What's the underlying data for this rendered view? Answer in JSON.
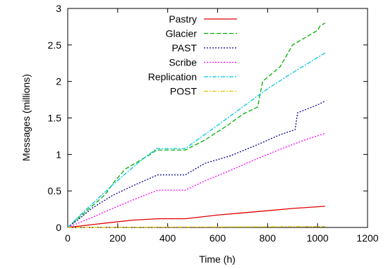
{
  "chart_data": {
    "type": "line",
    "xlabel": "Time (h)",
    "ylabel": "Messages (millions)",
    "xlim": [
      0,
      1200
    ],
    "ylim": [
      0,
      3
    ],
    "xticks": [
      0,
      200,
      400,
      600,
      800,
      1000,
      1200
    ],
    "yticks": [
      0,
      0.5,
      1,
      1.5,
      2,
      2.5,
      3
    ],
    "xtick_labels": [
      "0",
      "200",
      "400",
      "600",
      "800",
      "1000",
      "1200"
    ],
    "ytick_labels": [
      "0",
      "0.5",
      "1",
      "1.5",
      "2",
      "2.5",
      "3"
    ],
    "grid": false,
    "legend_position": "top-left",
    "series": [
      {
        "name": "Pastry",
        "color": "#e00000",
        "dash": "solid",
        "x": [
          0,
          50,
          100,
          180,
          260,
          360,
          470,
          600,
          700,
          800,
          900,
          1030
        ],
        "y": [
          0,
          0.02,
          0.04,
          0.07,
          0.1,
          0.12,
          0.12,
          0.17,
          0.2,
          0.23,
          0.26,
          0.29
        ]
      },
      {
        "name": "Glacier",
        "color": "#00b000",
        "dash": "dashed",
        "x": [
          0,
          50,
          100,
          150,
          185,
          230,
          280,
          330,
          355,
          470,
          550,
          640,
          700,
          760,
          780,
          850,
          900,
          950,
          1000,
          1010,
          1030
        ],
        "y": [
          0,
          0.15,
          0.3,
          0.45,
          0.62,
          0.8,
          0.9,
          1.0,
          1.06,
          1.06,
          1.2,
          1.4,
          1.55,
          1.65,
          2.0,
          2.2,
          2.5,
          2.6,
          2.7,
          2.76,
          2.8
        ]
      },
      {
        "name": "PAST",
        "color": "#00008b",
        "dash": "dotted",
        "x": [
          0,
          50,
          100,
          180,
          260,
          360,
          470,
          550,
          650,
          750,
          850,
          910,
          920,
          1000,
          1030
        ],
        "y": [
          0,
          0.13,
          0.27,
          0.44,
          0.57,
          0.72,
          0.72,
          0.88,
          0.98,
          1.12,
          1.27,
          1.34,
          1.57,
          1.68,
          1.73
        ]
      },
      {
        "name": "Scribe",
        "color": "#ff00ff",
        "dash": "dotted",
        "x": [
          0,
          100,
          200,
          300,
          360,
          470,
          550,
          650,
          750,
          850,
          950,
          1030
        ],
        "y": [
          0,
          0.14,
          0.29,
          0.43,
          0.51,
          0.51,
          0.64,
          0.78,
          0.93,
          1.07,
          1.2,
          1.29
        ]
      },
      {
        "name": "Replication",
        "color": "#00c8e0",
        "dash": "dashdot",
        "x": [
          0,
          50,
          100,
          185,
          280,
          355,
          470,
          600,
          700,
          800,
          900,
          1030
        ],
        "y": [
          0,
          0.17,
          0.33,
          0.6,
          0.88,
          1.08,
          1.08,
          1.4,
          1.65,
          1.9,
          2.12,
          2.39
        ]
      },
      {
        "name": "POST",
        "color": "#e0c800",
        "dash": "dashdot",
        "x": [
          0,
          200,
          400,
          600,
          800,
          1030
        ],
        "y": [
          0,
          0.003,
          0.005,
          0.007,
          0.009,
          0.012
        ]
      }
    ]
  }
}
